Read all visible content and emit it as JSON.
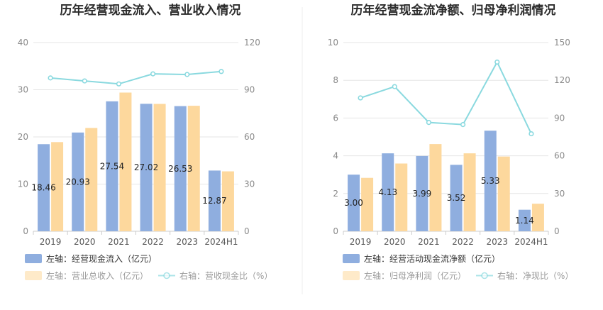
{
  "chart_data": [
    {
      "type": "bar",
      "title": "历年经营现金流入、营业收入情况",
      "categories": [
        "2019",
        "2020",
        "2021",
        "2022",
        "2023",
        "2024H1"
      ],
      "series": [
        {
          "name": "左轴：经营现金流入（亿元）",
          "axis": "left",
          "kind": "bar",
          "color": "#8faedf",
          "values": [
            18.46,
            20.93,
            27.54,
            27.02,
            26.53,
            12.87
          ],
          "labels": [
            "18.46",
            "20.93",
            "27.54",
            "27.02",
            "26.53",
            "12.87"
          ]
        },
        {
          "name": "左轴：营业总收入（亿元）",
          "axis": "left",
          "kind": "bar",
          "color": "#fdd89d",
          "values": [
            18.9,
            21.9,
            29.4,
            27.0,
            26.6,
            12.7
          ]
        },
        {
          "name": "右轴：营收现金比（%）",
          "axis": "right",
          "kind": "line",
          "color": "#8ad9df",
          "values": [
            97.5,
            95.6,
            93.7,
            100.1,
            99.7,
            101.6
          ]
        }
      ],
      "ylim": [
        0,
        40
      ],
      "yticks": [
        "0",
        "10",
        "20",
        "30",
        "40"
      ],
      "y2lim": [
        0,
        120
      ],
      "y2ticks": [
        "0",
        "30",
        "60",
        "90",
        "120"
      ],
      "grid": true,
      "legend_position": "bottom"
    },
    {
      "type": "bar",
      "title": "历年经营现金流净额、归母净利润情况",
      "categories": [
        "2019",
        "2020",
        "2021",
        "2022",
        "2023",
        "2024H1"
      ],
      "series": [
        {
          "name": "左轴：经营活动现金流净额（亿元）",
          "axis": "left",
          "kind": "bar",
          "color": "#8faedf",
          "values": [
            3.0,
            4.13,
            3.99,
            3.52,
            5.33,
            1.14
          ],
          "labels": [
            "3.00",
            "4.13",
            "3.99",
            "3.52",
            "5.33",
            "1.14"
          ]
        },
        {
          "name": "左轴：归母净利润（亿元）",
          "axis": "left",
          "kind": "bar",
          "color": "#fdd89d",
          "values": [
            2.83,
            3.59,
            4.62,
            4.13,
            3.96,
            1.46
          ]
        },
        {
          "name": "右轴：净现比（%）",
          "axis": "right",
          "kind": "line",
          "color": "#8ad9df",
          "values": [
            106,
            115,
            86.5,
            84.8,
            134.5,
            77.5
          ]
        }
      ],
      "ylim": [
        0,
        10
      ],
      "yticks": [
        "0",
        "2",
        "4",
        "6",
        "8",
        "10"
      ],
      "y2lim": [
        0,
        150
      ],
      "y2ticks": [
        "0",
        "30",
        "60",
        "90",
        "120",
        "150"
      ],
      "grid": true,
      "legend_position": "bottom"
    }
  ]
}
